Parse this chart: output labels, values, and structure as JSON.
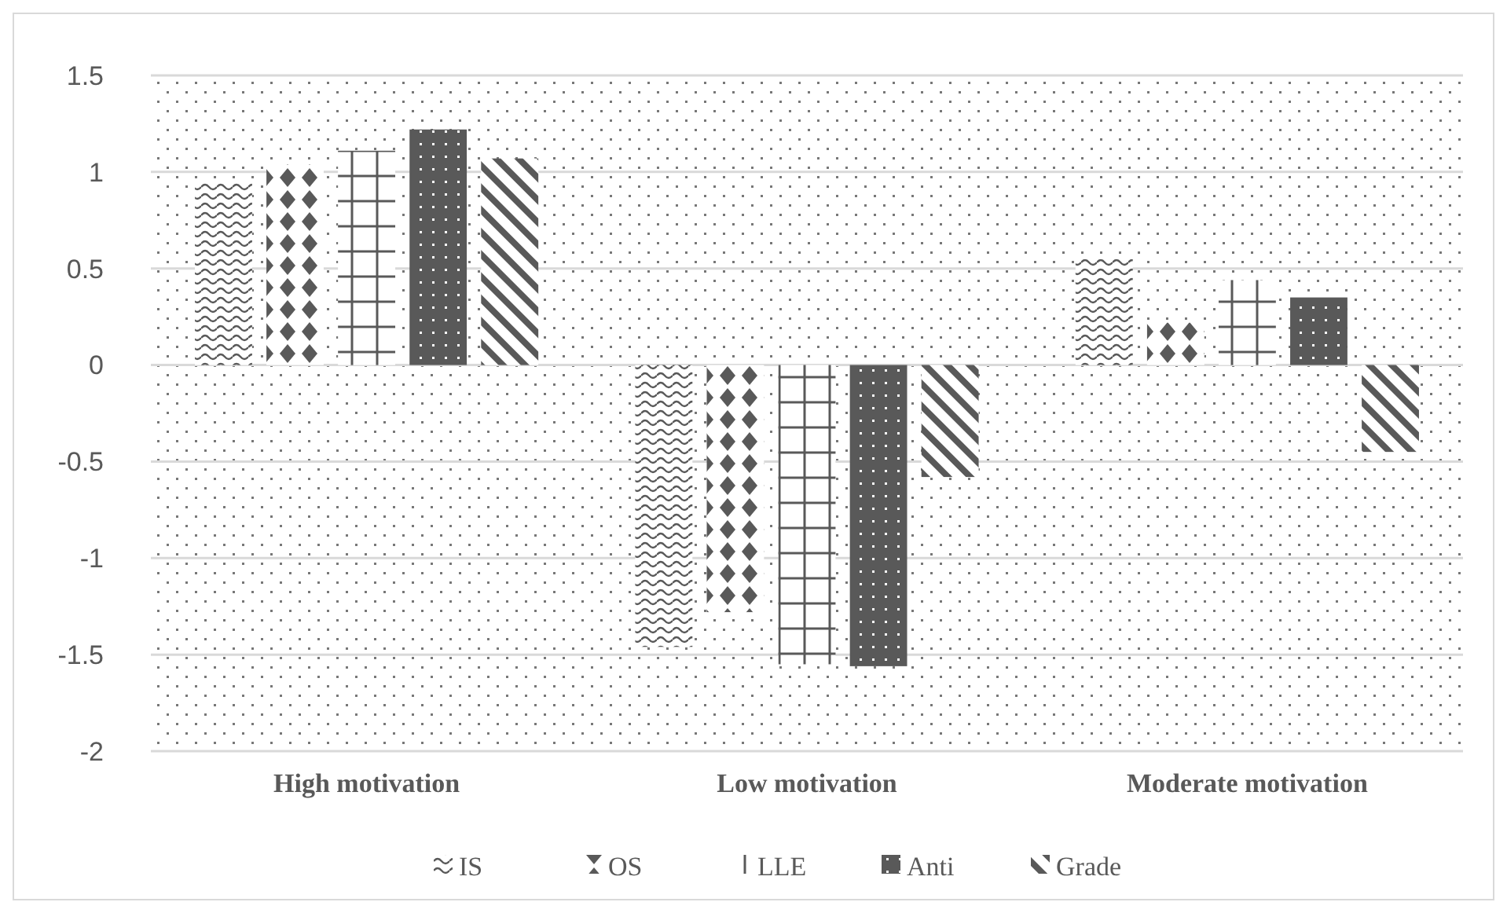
{
  "chart_data": {
    "type": "bar",
    "categories": [
      "High motivation",
      "Low motivation",
      "Moderate motivation"
    ],
    "series": [
      {
        "name": "IS",
        "color": "#595959",
        "values": [
          0.95,
          -1.46,
          0.55
        ]
      },
      {
        "name": "OS",
        "color": "#595959",
        "values": [
          1.04,
          -1.28,
          0.22
        ]
      },
      {
        "name": "LLE",
        "color": "#595959",
        "values": [
          1.11,
          -1.55,
          0.44
        ]
      },
      {
        "name": "Anti",
        "color": "#595959",
        "values": [
          1.22,
          -1.56,
          0.35
        ]
      },
      {
        "name": "Grade",
        "color": "#595959",
        "values": [
          1.07,
          -0.58,
          -0.45
        ]
      }
    ],
    "ylim": [
      -2,
      1.5
    ],
    "yticks": [
      -2,
      -1.5,
      -1,
      -0.5,
      0,
      0.5,
      1,
      1.5
    ],
    "grid": "y",
    "legend": "bottom"
  }
}
